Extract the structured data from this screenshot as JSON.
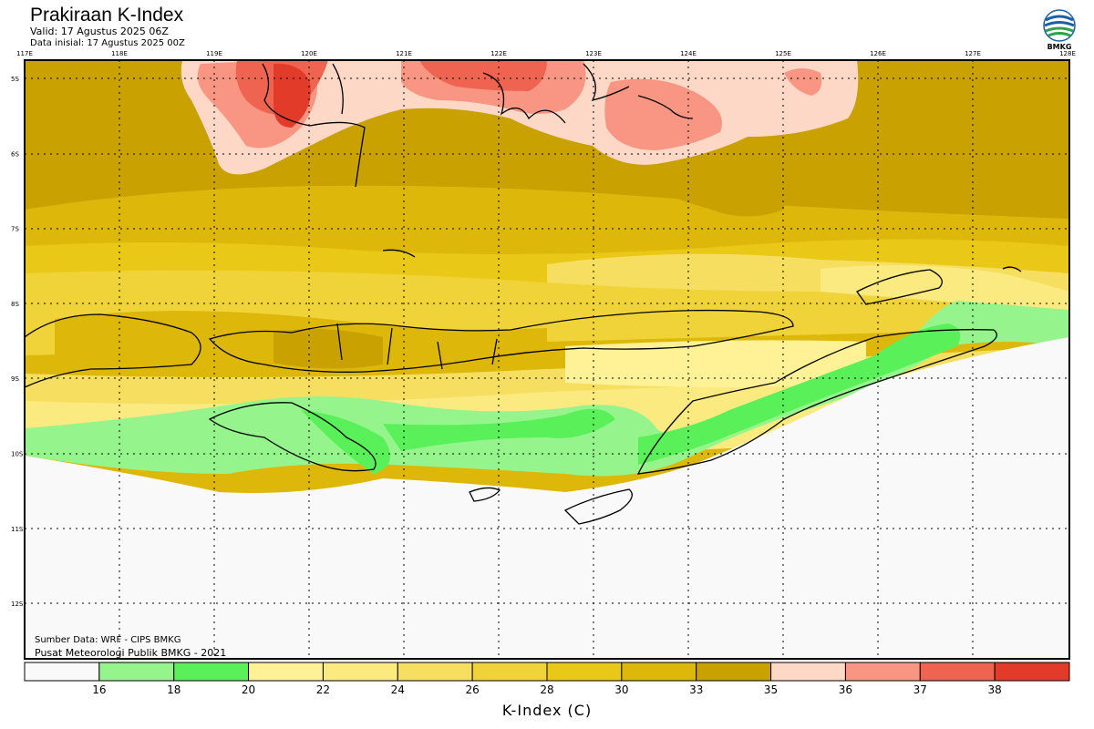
{
  "header": {
    "title": "Prakiraan K-Index",
    "valid": "Valid: 17 Agustus 2025 06Z",
    "initial": "Data inisial: 17 Agustus 2025 00Z"
  },
  "logo": {
    "text": "BMKG",
    "icon": "bmkg-logo-icon"
  },
  "map": {
    "lon_labels": [
      "117E",
      "118E",
      "119E",
      "120E",
      "121E",
      "122E",
      "123E",
      "124E",
      "125E",
      "126E",
      "127E",
      "128E"
    ],
    "lat_labels": [
      "5S",
      "6S",
      "7S",
      "8S",
      "9S",
      "10S",
      "11S",
      "12S"
    ],
    "lon_range": [
      117,
      128
    ],
    "lat_range": [
      -4.8,
      -12.8
    ]
  },
  "credits": {
    "source": "Sumber Data: WRF - CIPS BMKG",
    "center": "Pusat Meteorologi Publik BMKG - 2021"
  },
  "colorbar": {
    "ticks": [
      "16",
      "18",
      "20",
      "22",
      "24",
      "26",
      "28",
      "30",
      "33",
      "35",
      "36",
      "37",
      "38"
    ],
    "colors": [
      "#f9f9f9",
      "#95f58c",
      "#5af05a",
      "#fff196",
      "#faea80",
      "#f5de60",
      "#f0d338",
      "#e9c818",
      "#ddb80a",
      "#c9a100",
      "#fdd8c6",
      "#f99683",
      "#ee6450",
      "#e33b2a"
    ],
    "label": "K-Index (C)"
  }
}
